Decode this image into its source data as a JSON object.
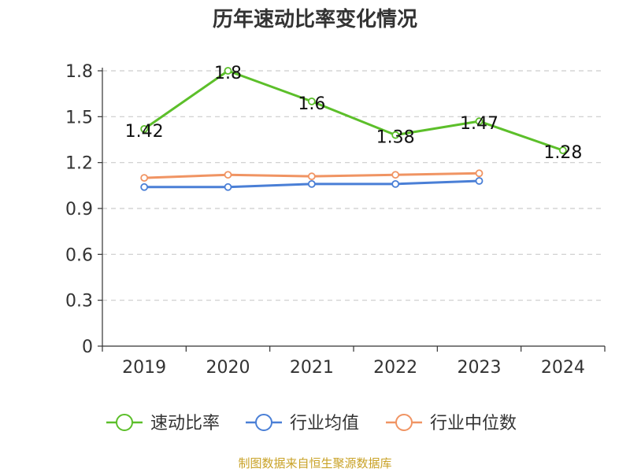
{
  "chart_data": {
    "type": "line",
    "title": "历年速动比率变化情况",
    "categories": [
      "2019",
      "2020",
      "2021",
      "2022",
      "2023",
      "2024"
    ],
    "ylim": [
      0,
      1.8
    ],
    "yticks": [
      "0",
      "0.3",
      "0.6",
      "0.9",
      "1.2",
      "1.5",
      "1.8"
    ],
    "grid": true,
    "legend_position": "bottom",
    "series": [
      {
        "name": "速动比率",
        "color": "#5cbf2a",
        "values": [
          1.42,
          1.8,
          1.6,
          1.38,
          1.47,
          1.28
        ],
        "labels": [
          "1.42",
          "1.8",
          "1.6",
          "1.38",
          "1.47",
          "1.28"
        ],
        "show_labels": true
      },
      {
        "name": "行业均值",
        "color": "#4a7fd6",
        "values": [
          1.04,
          1.04,
          1.06,
          1.06,
          1.08,
          null
        ],
        "show_labels": false
      },
      {
        "name": "行业中位数",
        "color": "#f09463",
        "values": [
          1.1,
          1.12,
          1.11,
          1.12,
          1.13,
          null
        ],
        "show_labels": false
      }
    ]
  },
  "source": "制图数据来自恒生聚源数据库"
}
